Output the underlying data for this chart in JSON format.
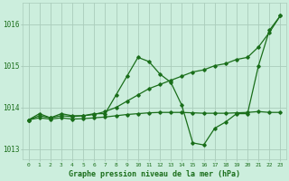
{
  "title": "Graphe pression niveau de la mer (hPa)",
  "xlabel_ticks": [
    0,
    1,
    2,
    3,
    4,
    5,
    6,
    7,
    8,
    9,
    10,
    11,
    12,
    13,
    14,
    15,
    16,
    17,
    18,
    19,
    20,
    21,
    22,
    23
  ],
  "ylim": [
    1012.75,
    1016.5
  ],
  "yticks": [
    1013,
    1014,
    1015,
    1016
  ],
  "background_color": "#cceedd",
  "grid_color": "#aaccbb",
  "line_color": "#1a6e1a",
  "series": {
    "line1": [
      1013.7,
      1013.85,
      1013.75,
      1013.85,
      1013.8,
      1013.8,
      1013.85,
      1013.85,
      1014.3,
      1014.75,
      1015.2,
      1015.1,
      1014.8,
      1014.6,
      1014.05,
      1013.15,
      1013.1,
      1013.5,
      1013.65,
      1013.85,
      1013.85,
      1015.0,
      1015.85,
      1016.2
    ],
    "line2": [
      1013.7,
      1013.8,
      1013.75,
      1013.8,
      1013.78,
      1013.8,
      1013.83,
      1013.9,
      1014.0,
      1014.15,
      1014.3,
      1014.45,
      1014.55,
      1014.65,
      1014.75,
      1014.85,
      1014.9,
      1015.0,
      1015.05,
      1015.15,
      1015.2,
      1015.45,
      1015.8,
      1016.2
    ],
    "line3": [
      1013.7,
      1013.75,
      1013.72,
      1013.75,
      1013.72,
      1013.73,
      1013.75,
      1013.77,
      1013.8,
      1013.83,
      1013.85,
      1013.87,
      1013.88,
      1013.88,
      1013.88,
      1013.87,
      1013.86,
      1013.86,
      1013.86,
      1013.87,
      1013.88,
      1013.9,
      1013.88,
      1013.88
    ]
  }
}
